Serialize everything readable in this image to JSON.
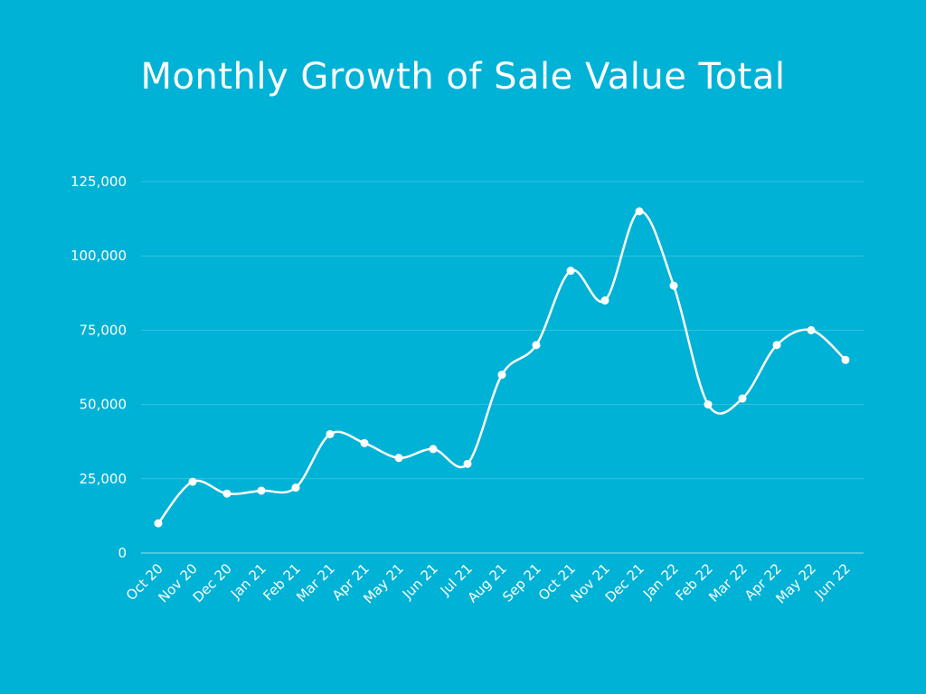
{
  "chart_data": {
    "type": "line",
    "title": "Monthly Growth of Sale Value Total",
    "xlabel": "",
    "ylabel": "",
    "categories": [
      "Oct 20",
      "Nov 20",
      "Dec 20",
      "Jan 21",
      "Feb 21",
      "Mar 21",
      "Apr 21",
      "May 21",
      "Jun 21",
      "Jul 21",
      "Aug 21",
      "Sep 21",
      "Oct 21",
      "Nov 21",
      "Dec 21",
      "Jan 22",
      "Feb 22",
      "Mar 22",
      "Apr 22",
      "May 22",
      "Jun 22"
    ],
    "series": [
      {
        "name": "Sale Value Total",
        "values": [
          10000,
          24000,
          20000,
          21000,
          22000,
          40000,
          37000,
          32000,
          35000,
          30000,
          60000,
          70000,
          95000,
          85000,
          115000,
          90000,
          50000,
          52000,
          70000,
          75000,
          65000
        ],
        "color": "#ffffff",
        "smooth": true,
        "markers": true
      }
    ],
    "ylim": [
      0,
      125000
    ],
    "yticks": [
      0,
      25000,
      50000,
      75000,
      100000,
      125000
    ],
    "ytick_labels": [
      "0",
      "25,000",
      "50,000",
      "75,000",
      "100,000",
      "125,000"
    ],
    "grid": true,
    "legend": "none",
    "background": "#00b2d6"
  }
}
